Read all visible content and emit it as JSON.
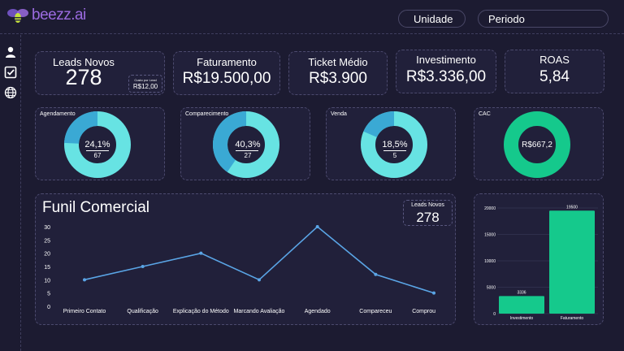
{
  "header": {
    "brand": "beezz.ai",
    "unidade_label": "Unidade",
    "periodo_label": "Periodo"
  },
  "kpis": {
    "leads": {
      "title": "Leads Novos",
      "value": "278",
      "custo_label": "Custo por Lead",
      "custo_value": "R$12,00"
    },
    "faturamento": {
      "title": "Faturamento",
      "value": "R$19.500,00"
    },
    "ticket": {
      "title": "Ticket Médio",
      "value": "R$3.900"
    },
    "investimento": {
      "title": "Investimento",
      "value": "R$3.336,00"
    },
    "roas": {
      "title": "ROAS",
      "value": "5,84"
    }
  },
  "donuts": [
    {
      "title": "Agendamento",
      "pct_label": "24,1%",
      "count": "67",
      "fraction": 0.241
    },
    {
      "title": "Comparecimento",
      "pct_label": "40,3%",
      "count": "27",
      "fraction": 0.403
    },
    {
      "title": "Venda",
      "pct_label": "18,5%",
      "count": "5",
      "fraction": 0.185
    },
    {
      "title": "CAC",
      "pct_label": "R$667,2",
      "count": "",
      "fraction": 1.0
    }
  ],
  "colors": {
    "background": "#1c1b31",
    "card": "#21203a",
    "donut_light": "#67e3e3",
    "donut_dark": "#3aa9d4",
    "cac_green": "#15c98c",
    "line": "#5aa5e6",
    "bar": "#15c98c",
    "brand": "#9b6be0"
  },
  "funnel": {
    "title": "Funil Comercial",
    "badge_label": "Leads Novos",
    "badge_value": "278"
  },
  "chart_data": [
    {
      "type": "line",
      "categories": [
        "Primeiro Contato",
        "Qualificação",
        "Explicação do Método",
        "Marcando Avaliação",
        "Agendado",
        "Compareceu",
        "Comprou"
      ],
      "values": [
        10,
        15,
        20,
        10,
        30,
        12,
        5
      ],
      "ylim": [
        0,
        30
      ],
      "yticks": [
        0,
        5,
        10,
        15,
        20,
        25,
        30
      ],
      "grid": false
    },
    {
      "type": "bar",
      "categories": [
        "Investimento",
        "Faturamento"
      ],
      "values": [
        3336,
        19500
      ],
      "value_labels": [
        "3336",
        "19500"
      ],
      "ylim": [
        0,
        20000
      ],
      "yticks": [
        0,
        5000,
        10000,
        15000,
        20000
      ],
      "grid": true
    }
  ]
}
